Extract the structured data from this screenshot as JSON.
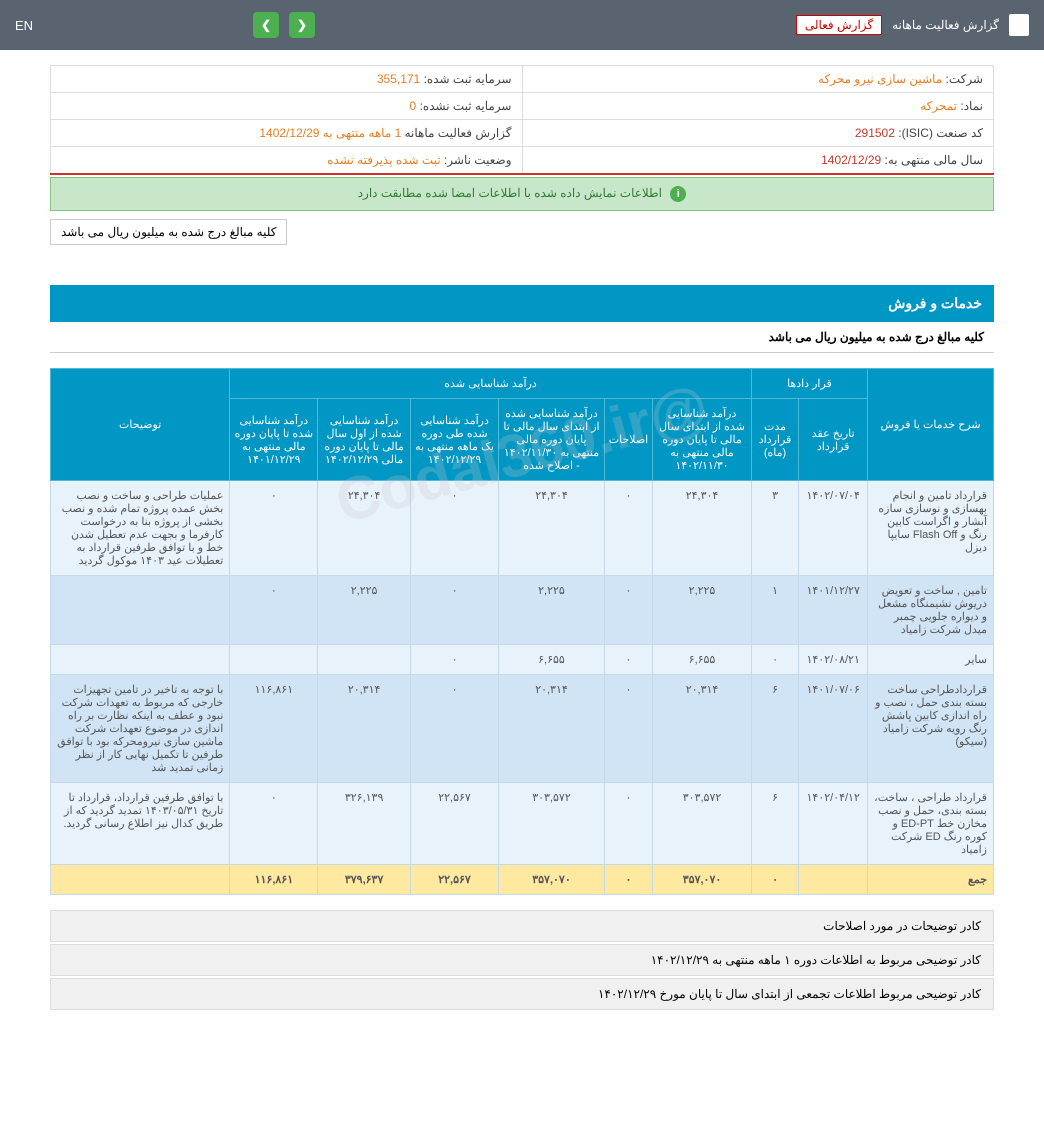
{
  "topbar": {
    "title": "گزارش فعالیت ماهانه",
    "dropdown": "گزارش فعالی",
    "lang": "EN"
  },
  "info": {
    "company_label": "شرکت:",
    "company_value": "ماشین سازی نیرو محرکه",
    "capital_reg_label": "سرمایه ثبت شده:",
    "capital_reg_value": "355,171",
    "symbol_label": "نماد:",
    "symbol_value": "تمحرکه",
    "capital_unreg_label": "سرمایه ثبت نشده:",
    "capital_unreg_value": "0",
    "isic_label": "کد صنعت (ISIC):",
    "isic_value": "291502",
    "report_type_label": "گزارش فعالیت ماهانه",
    "report_period": "1 ماهه منتهی به",
    "report_date": "1402/12/29",
    "fiscal_label": "سال مالی منتهی به:",
    "fiscal_value": "1402/12/29",
    "status_label": "وضعیت ناشر:",
    "status_value": "ثبت شده پذیرفته نشده"
  },
  "banner": "اطلاعات نمایش داده شده با اطلاعات امضا شده مطابقت دارد",
  "note": "کلیه مبالغ درج شده به میلیون ریال می باشد",
  "section": {
    "title": "خدمات و فروش",
    "subtitle": "کلیه مبالغ درج شده به میلیون ریال می باشد"
  },
  "headers": {
    "desc": "شرح خدمات یا فروش",
    "contracts": "قرار دادها",
    "contract_date": "تاریخ عقد قرارداد",
    "contract_dur": "مدت قرارداد (ماه)",
    "income_rec": "درآمد شناسایی شده",
    "income1": "درآمد شناسایی شده از ابتدای سال مالی تا پایان دوره مالی منتهی به ۱۴۰۲/۱۱/۳۰",
    "corrections": "اصلاحات",
    "income2": "درآمد شناسایی شده از ابتدای سال مالی تا پایان دوره مالی منتهی به ۱۴۰۲/۱۱/۳۰ - اصلاح شده",
    "income3": "درآمد شناسایی شده طی دوره یک ماهه منتهی به ۱۴۰۲/۱۲/۲۹",
    "income4": "درآمد شناسایی شده از اول سال مالی تا پایان دوره مالی ۱۴۰۲/۱۲/۲۹",
    "income5": "درآمد شناسایی شده تا پایان دوره مالی منتهی به ۱۴۰۱/۱۲/۲۹",
    "notes": "توضیحات"
  },
  "rows": [
    {
      "desc": "قرارداد تامین و انجام بهسازی و نوسازی سازه آبشار و اگراست کابین رنگ و Flash Off سایپا دیزل",
      "date": "۱۴۰۲/۰۷/۰۴",
      "dur": "۳",
      "c1": "۲۴,۳۰۴",
      "corr": "۰",
      "c2": "۲۴,۳۰۴",
      "c3": "۰",
      "c4": "۲۴,۳۰۴",
      "c5": "۰",
      "note": "عملیات طراحی و ساخت و نصب بخش عمده پروژه تمام شده و نصب بخشی از پروژه بنا به درخواست کارفرما و بجهت عدم تعطیل شدن خط و با توافق طرفین قرارداد به تعطیلات عید ۱۴۰۳ موکول گردید"
    },
    {
      "desc": "تامین , ساخت و تعویض دریوش نشیمنگاه مشعل و دیواره جلویی چمبر میدل شرکت زامیاد",
      "date": "۱۴۰۱/۱۲/۲۷",
      "dur": "۱",
      "c1": "۲,۲۲۵",
      "corr": "۰",
      "c2": "۲,۲۲۵",
      "c3": "۰",
      "c4": "۲,۲۲۵",
      "c5": "۰",
      "note": ""
    },
    {
      "desc": "سایر",
      "date": "۱۴۰۲/۰۸/۲۱",
      "dur": "۰",
      "c1": "۶,۶۵۵",
      "corr": "۰",
      "c2": "۶,۶۵۵",
      "c3": "۰",
      "c4": "",
      "c5": "",
      "note": ""
    },
    {
      "desc": "قراردادطراحی ساخت بسته بندی حمل ، نصب و راه اندازی کابین پاشش رنگ رویه شرکت زامیاد (سیکو)",
      "date": "۱۴۰۱/۰۷/۰۶",
      "dur": "۶",
      "c1": "۲۰,۳۱۴",
      "corr": "۰",
      "c2": "۲۰,۳۱۴",
      "c3": "۰",
      "c4": "۲۰,۳۱۴",
      "c5": "۱۱۶,۸۶۱",
      "note": "با توجه به تاخیر در تامین تجهیزات خارجی که مربوط به تعهدات شرکت نبود و عطف به اینکه نظارت بر راه اندازی در موضوع تعهدات شرکت ماشین سازی نیرومحرکه بود با توافق طرفین تا تکمیل نهایی کار از نظر زمانی تمدید شد"
    },
    {
      "desc": "قرارداد طراحی ، ساخت، بسته بندی، حمل و نصب مخازن خط ED-PT و کوره رنگ ED شرکت زامیاد",
      "date": "۱۴۰۲/۰۴/۱۲",
      "dur": "۶",
      "c1": "۳۰۳,۵۷۲",
      "corr": "۰",
      "c2": "۳۰۳,۵۷۲",
      "c3": "۲۲,۵۶۷",
      "c4": "۳۲۶,۱۳۹",
      "c5": "۰",
      "note": "با توافق طرفین قرارداد، قرارداد تا تاریخ ۱۴۰۳/۰۵/۳۱ تمدید گردید که از طریق کدال نیز اطلاع رسانی گردید."
    }
  ],
  "total": {
    "label": "جمع",
    "dur": "۰",
    "c1": "۳۵۷,۰۷۰",
    "corr": "۰",
    "c2": "۳۵۷,۰۷۰",
    "c3": "۲۲,۵۶۷",
    "c4": "۳۷۹,۶۳۷",
    "c5": "۱۱۶,۸۶۱"
  },
  "footers": {
    "f1": "کادر توضیحات در مورد اصلاحات",
    "f2": "کادر توضیحی مربوط به اطلاعات دوره ۱ ماهه منتهی به ۱۴۰۲/۱۲/۲۹",
    "f3": "کادر توضیحی مربوط اطلاعات تجمعی از ابتدای سال تا پایان مورخ ۱۴۰۲/۱۲/۲۹"
  },
  "watermark": "@Codal360.ir"
}
